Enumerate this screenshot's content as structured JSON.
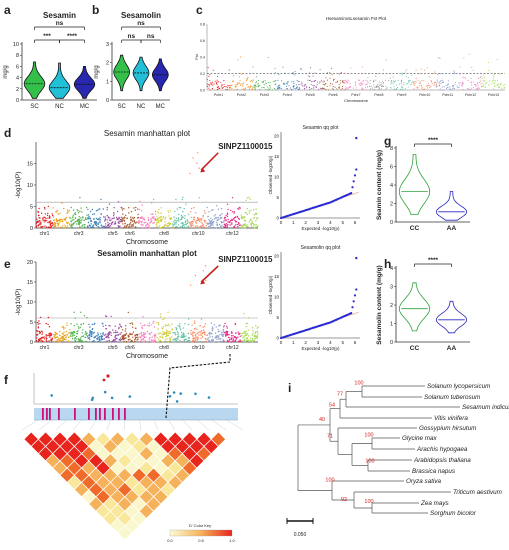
{
  "panel_labels": [
    "a",
    "b",
    "c",
    "d",
    "g",
    "e",
    "h",
    "f",
    "i"
  ],
  "chart_data": [
    {
      "panel": "a",
      "type": "violin",
      "title": "Sesamin",
      "ylabel": "mg/g",
      "categories": [
        "SC",
        "NC",
        "MC"
      ],
      "ylim": [
        0,
        10
      ],
      "yticks": [
        "0",
        "2",
        "4",
        "6",
        "8",
        "10"
      ],
      "medians": [
        2.9,
        2.2,
        2.8
      ],
      "ranges": [
        [
          0.3,
          6.8
        ],
        [
          0.3,
          6.6
        ],
        [
          0.3,
          6.0
        ]
      ],
      "colors": [
        "#33c04a",
        "#22c0d8",
        "#2727b0"
      ],
      "significance": [
        {
          "pair": [
            0,
            1
          ],
          "label": "***"
        },
        {
          "pair": [
            1,
            2
          ],
          "label": "****"
        },
        {
          "pair": [
            0,
            2
          ],
          "label": "ns"
        }
      ]
    },
    {
      "panel": "b",
      "type": "violin",
      "title": "Sesamolin",
      "ylabel": "mg/g",
      "categories": [
        "SC",
        "NC",
        "MC"
      ],
      "ylim": [
        0,
        3
      ],
      "yticks": [
        "0",
        "1",
        "2",
        "3"
      ],
      "medians": [
        1.5,
        1.45,
        1.35
      ],
      "ranges": [
        [
          0.5,
          2.4
        ],
        [
          0.5,
          2.3
        ],
        [
          0.5,
          2.2
        ]
      ],
      "colors": [
        "#33c04a",
        "#22c0d8",
        "#2727b0"
      ],
      "significance": [
        {
          "pair": [
            0,
            1
          ],
          "label": "ns"
        },
        {
          "pair": [
            1,
            2
          ],
          "label": "ns"
        },
        {
          "pair": [
            0,
            2
          ],
          "label": "ns"
        }
      ]
    },
    {
      "panel": "c",
      "type": "scatter",
      "title": "HsesaminvsLsesamin Fst Plot",
      "ylabel": "Fst",
      "xlabel": "Chromosome",
      "yticks": [
        "0.0",
        "0.2",
        "0.4",
        "0.6",
        "0.8"
      ],
      "categories": [
        "Pchr1",
        "Pchr2",
        "Pchr3",
        "Pchr4",
        "Pchr5",
        "Pchr6",
        "Pchr7",
        "Pchr8",
        "Pchr9",
        "Pchr10",
        "Pchr11",
        "Pchr12",
        "Pchr13"
      ],
      "threshold": 0.2
    },
    {
      "panel": "d",
      "type": "scatter",
      "title": "Sesamin manhattan plot",
      "ylabel": "-log10(P)",
      "xlabel": "Chromosome",
      "ylim": [
        0,
        20
      ],
      "yticks": [
        "0",
        "5",
        "10",
        "15"
      ],
      "categories": [
        "chr1",
        "chr3",
        "chr5",
        "chr6",
        "chr8",
        "chr10",
        "chr12"
      ],
      "threshold": 6,
      "annotation": "SINPZ1100015"
    },
    {
      "panel": "d",
      "type": "scatter",
      "title": "Sesamin qq plot",
      "xlabel": "Expected -log10(p)",
      "ylabel": "Observed -log10(p)",
      "xticks": [
        "0",
        "1",
        "2",
        "3",
        "4",
        "5",
        "6"
      ],
      "yticks": [
        "0",
        "5",
        "10",
        "15",
        "20"
      ]
    },
    {
      "panel": "g",
      "type": "violin",
      "ylabel": "Seamin content (mg/g)",
      "categories": [
        "CC",
        "AA"
      ],
      "ylim": [
        0,
        8
      ],
      "yticks": [
        "0",
        "2",
        "4",
        "6",
        "8"
      ],
      "medians": [
        3.3,
        1.1
      ],
      "ranges": [
        [
          0.8,
          7.3
        ],
        [
          0.2,
          3.3
        ]
      ],
      "colors": [
        "#2ca33a",
        "#2828c0"
      ],
      "significance": [
        {
          "pair": [
            0,
            1
          ],
          "label": "****"
        }
      ]
    },
    {
      "panel": "e",
      "type": "scatter",
      "title": "Sesamolin manhattan plot",
      "ylabel": "-log10(P)",
      "xlabel": "Chromosome",
      "ylim": [
        0,
        20
      ],
      "yticks": [
        "0",
        "5",
        "10",
        "15",
        "20"
      ],
      "categories": [
        "chr1",
        "chr3",
        "chr5",
        "chr6",
        "chr8",
        "chr10",
        "chr12"
      ],
      "threshold": 6,
      "annotation": "SINPZ1100015"
    },
    {
      "panel": "e",
      "type": "scatter",
      "title": "Sesamolin qq plot",
      "xlabel": "Expected -log10(p)",
      "ylabel": "Observed -log10(p)",
      "xticks": [
        "0",
        "1",
        "2",
        "3",
        "4",
        "5",
        "6"
      ],
      "yticks": [
        "0",
        "5",
        "10",
        "15",
        "20"
      ]
    },
    {
      "panel": "h",
      "type": "violin",
      "ylabel": "Sesamolin content (mg/g)",
      "categories": [
        "CC",
        "AA"
      ],
      "ylim": [
        0,
        4
      ],
      "yticks": [
        "0",
        "1",
        "2",
        "3",
        "4"
      ],
      "medians": [
        1.8,
        1.2
      ],
      "ranges": [
        [
          0.6,
          3.2
        ],
        [
          0.5,
          2.2
        ]
      ],
      "colors": [
        "#2ca33a",
        "#2828c0"
      ],
      "significance": [
        {
          "pair": [
            0,
            1
          ],
          "label": "****"
        }
      ]
    },
    {
      "panel": "f",
      "type": "heatmap",
      "legend_title": "D' Color Key",
      "legend_ticks": [
        "0.0",
        "0.5",
        "1.0"
      ]
    },
    {
      "panel": "i",
      "type": "tree",
      "taxa": [
        "Solanum lycopersicum",
        "Solanum tuberosum",
        "Sesamum indicum",
        "Vitis vinifera",
        "Gossypium hirsutum",
        "Glycine max",
        "Arachis hypogaea",
        "Arabidopsis thaliana",
        "Brassica napus",
        "Oryza sativa",
        "Triticum aestivum",
        "Zea mays",
        "Sorghum bicolor"
      ],
      "bootstrap": [
        "100",
        "77",
        "54",
        "40",
        "71",
        "100",
        "100",
        "100",
        "92",
        "100"
      ],
      "scale_label": "0.050"
    }
  ]
}
